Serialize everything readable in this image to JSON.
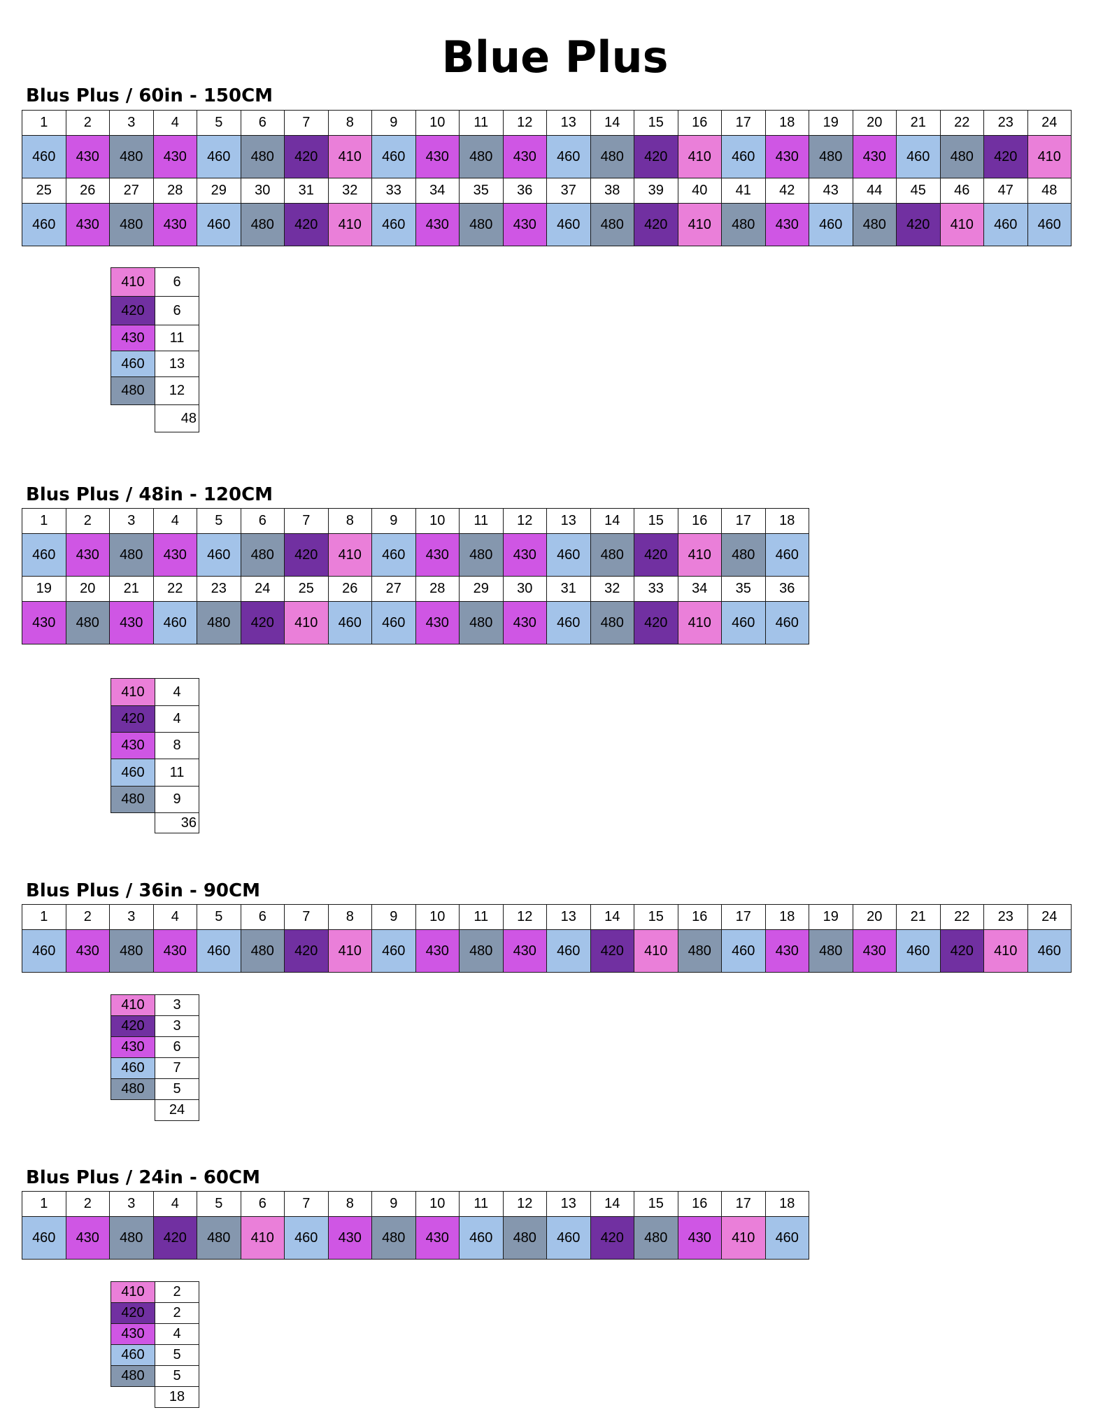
{
  "title": "Blue Plus",
  "colors": {
    "410": "#ea7fd9",
    "420": "#7130a1",
    "430": "#cf56e4",
    "460": "#a3c3e9",
    "480": "#8597ae"
  },
  "sections": [
    {
      "id": "60in",
      "title": "Blus Plus / 60in - 150CM",
      "rows": [
        {
          "numbers": [
            "1",
            "2",
            "3",
            "4",
            "5",
            "6",
            "7",
            "8",
            "9",
            "10",
            "11",
            "12",
            "13",
            "14",
            "15",
            "16",
            "17",
            "18",
            "19",
            "20",
            "21",
            "22",
            "23",
            "24"
          ],
          "values": [
            "460",
            "430",
            "480",
            "430",
            "460",
            "480",
            "420",
            "410",
            "460",
            "430",
            "480",
            "430",
            "460",
            "480",
            "420",
            "410",
            "460",
            "430",
            "480",
            "430",
            "460",
            "480",
            "420",
            "410"
          ]
        },
        {
          "numbers": [
            "25",
            "26",
            "27",
            "28",
            "29",
            "30",
            "31",
            "32",
            "33",
            "34",
            "35",
            "36",
            "37",
            "38",
            "39",
            "40",
            "41",
            "42",
            "43",
            "44",
            "45",
            "46",
            "47",
            "48"
          ],
          "values": [
            "460",
            "430",
            "480",
            "430",
            "460",
            "480",
            "420",
            "410",
            "460",
            "430",
            "480",
            "430",
            "460",
            "480",
            "420",
            "410",
            "480",
            "430",
            "460",
            "480",
            "420",
            "410",
            "460",
            "460"
          ]
        }
      ],
      "legend": [
        {
          "code": "410",
          "count": "6"
        },
        {
          "code": "420",
          "count": "6"
        },
        {
          "code": "430",
          "count": "11"
        },
        {
          "code": "460",
          "count": "13"
        },
        {
          "code": "480",
          "count": "12"
        }
      ],
      "total": "48"
    },
    {
      "id": "48in",
      "title": "Blus Plus / 48in - 120CM",
      "rows": [
        {
          "numbers": [
            "1",
            "2",
            "3",
            "4",
            "5",
            "6",
            "7",
            "8",
            "9",
            "10",
            "11",
            "12",
            "13",
            "14",
            "15",
            "16",
            "17",
            "18"
          ],
          "values": [
            "460",
            "430",
            "480",
            "430",
            "460",
            "480",
            "420",
            "410",
            "460",
            "430",
            "480",
            "430",
            "460",
            "480",
            "420",
            "410",
            "480",
            "460"
          ]
        },
        {
          "numbers": [
            "19",
            "20",
            "21",
            "22",
            "23",
            "24",
            "25",
            "26",
            "27",
            "28",
            "29",
            "30",
            "31",
            "32",
            "33",
            "34",
            "35",
            "36"
          ],
          "values": [
            "430",
            "480",
            "430",
            "460",
            "480",
            "420",
            "410",
            "460",
            "460",
            "430",
            "480",
            "430",
            "460",
            "480",
            "420",
            "410",
            "460",
            "460"
          ]
        }
      ],
      "legend": [
        {
          "code": "410",
          "count": "4"
        },
        {
          "code": "420",
          "count": "4"
        },
        {
          "code": "430",
          "count": "8"
        },
        {
          "code": "460",
          "count": "11"
        },
        {
          "code": "480",
          "count": "9"
        }
      ],
      "total": "36"
    },
    {
      "id": "36in",
      "title": "Blus Plus / 36in - 90CM",
      "rows": [
        {
          "numbers": [
            "1",
            "2",
            "3",
            "4",
            "5",
            "6",
            "7",
            "8",
            "9",
            "10",
            "11",
            "12",
            "13",
            "14",
            "15",
            "16",
            "17",
            "18",
            "19",
            "20",
            "21",
            "22",
            "23",
            "24"
          ],
          "values": [
            "460",
            "430",
            "480",
            "430",
            "460",
            "480",
            "420",
            "410",
            "460",
            "430",
            "480",
            "430",
            "460",
            "420",
            "410",
            "480",
            "460",
            "430",
            "480",
            "430",
            "460",
            "420",
            "410",
            "460"
          ]
        }
      ],
      "legend": [
        {
          "code": "410",
          "count": "3"
        },
        {
          "code": "420",
          "count": "3"
        },
        {
          "code": "430",
          "count": "6"
        },
        {
          "code": "460",
          "count": "7"
        },
        {
          "code": "480",
          "count": "5"
        }
      ],
      "total": "24"
    },
    {
      "id": "24in",
      "title": "Blus Plus / 24in - 60CM",
      "rows": [
        {
          "numbers": [
            "1",
            "2",
            "3",
            "4",
            "5",
            "6",
            "7",
            "8",
            "9",
            "10",
            "11",
            "12",
            "13",
            "14",
            "15",
            "16",
            "17",
            "18"
          ],
          "values": [
            "460",
            "430",
            "480",
            "420",
            "480",
            "410",
            "460",
            "430",
            "480",
            "430",
            "460",
            "480",
            "460",
            "420",
            "480",
            "430",
            "410",
            "460"
          ]
        }
      ],
      "legend": [
        {
          "code": "410",
          "count": "2"
        },
        {
          "code": "420",
          "count": "2"
        },
        {
          "code": "430",
          "count": "4"
        },
        {
          "code": "460",
          "count": "5"
        },
        {
          "code": "480",
          "count": "5"
        }
      ],
      "total": "18"
    }
  ]
}
